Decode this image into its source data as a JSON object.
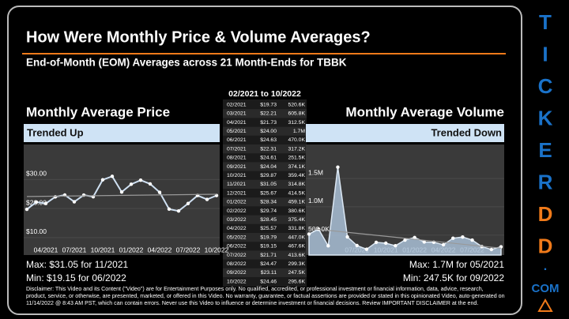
{
  "header": {
    "title": "How Were Monthly Price & Volume Averages?",
    "subtitle": "End-of-Month (EOM) Averages across 21 Month-Ends for TBBK"
  },
  "table": {
    "title": "02/2021 to 10/2022"
  },
  "chart_data": [
    {
      "type": "line",
      "title": "Monthly Average Price",
      "trend": "Trended Up",
      "color": "#cfe0f2",
      "categories": [
        "02/2021",
        "03/2021",
        "04/2021",
        "05/2021",
        "06/2021",
        "07/2021",
        "08/2021",
        "09/2021",
        "10/2021",
        "11/2021",
        "12/2021",
        "01/2022",
        "02/2022",
        "03/2022",
        "04/2022",
        "05/2022",
        "06/2022",
        "07/2022",
        "08/2022",
        "09/2022",
        "10/2022"
      ],
      "values": [
        19.73,
        22.21,
        21.73,
        24.0,
        24.63,
        22.31,
        24.61,
        24.04,
        29.87,
        31.05,
        25.67,
        28.34,
        29.74,
        28.45,
        25.57,
        19.79,
        19.15,
        21.71,
        24.47,
        23.11,
        24.46
      ],
      "value_labels": [
        "$19.73",
        "$22.21",
        "$21.73",
        "$24.00",
        "$24.63",
        "$22.31",
        "$24.61",
        "$24.04",
        "$29.87",
        "$31.05",
        "$25.67",
        "$28.34",
        "$29.74",
        "$28.45",
        "$25.57",
        "$19.79",
        "$19.15",
        "$21.71",
        "$24.47",
        "$23.11",
        "$24.46"
      ],
      "ylim": [
        4,
        42
      ],
      "yticks": [
        {
          "value": 30,
          "label": "$30.00"
        },
        {
          "value": 20,
          "label": "$20.00"
        },
        {
          "value": 10,
          "label": "$10.00"
        }
      ],
      "xtick_labels": [
        "04/2021",
        "07/2021",
        "10/2021",
        "01/2022",
        "04/2022",
        "07/2022",
        "10/2022"
      ],
      "stats": [
        "Max: $31.05 for 11/2021",
        "Min: $19.15 for 06/2022"
      ]
    },
    {
      "type": "area",
      "title": "Monthly Average Volume",
      "trend": "Trended Down",
      "color": "#a9bfd6",
      "values": [
        520600,
        605800,
        312500,
        1700000,
        470000,
        317200,
        251500,
        374100,
        359400,
        314800,
        414500,
        459100,
        380600,
        375400,
        331800,
        447000,
        467600,
        413600,
        299300,
        247500,
        295600
      ],
      "value_labels": [
        "520.6K",
        "605.8K",
        "312.5K",
        "1.7M",
        "470.0K",
        "317.2K",
        "251.5K",
        "374.1K",
        "359.4K",
        "314.8K",
        "414.5K",
        "459.1K",
        "380.6K",
        "375.4K",
        "331.8K",
        "447.0K",
        "467.6K",
        "413.6K",
        "299.3K",
        "247.5K",
        "295.6K"
      ],
      "ylim": [
        150000,
        2100000
      ],
      "yticks": [
        {
          "value": 1500000,
          "label": "1.5M"
        },
        {
          "value": 1000000,
          "label": "1.0M"
        },
        {
          "value": 500000,
          "label": "500.0K"
        }
      ],
      "xtick_labels": [
        "07/2021",
        "10/2021",
        "01/2022",
        "04/2022",
        "07/2022"
      ],
      "stats": [
        "Max: 1.7M for 05/2021",
        "Min: 247.5K for 09/2022"
      ]
    }
  ],
  "disclaimer": "Disclaimer: This Video and its Content (\"Video\") are for Entertainment Purposes only. No qualified, accredited, or professional investment or financial information, data, advice, research, product, service, or otherwise, are presented, marketed, or offered in this Video. No warranty, guarantee, or factual assertions are provided or stated in this opinionated Video, auto-generated on 11/14/2022 @ 8:43 AM PST, which can contain errors. Never use this Video to influence or determine investment or financial decisions. Review IMPORTANT DISCLAIMER at the end.",
  "brand": {
    "letters": [
      "T",
      "I",
      "C",
      "K",
      "E",
      "R",
      "D",
      "D"
    ],
    "dot": ".",
    "suffix": "COM"
  }
}
